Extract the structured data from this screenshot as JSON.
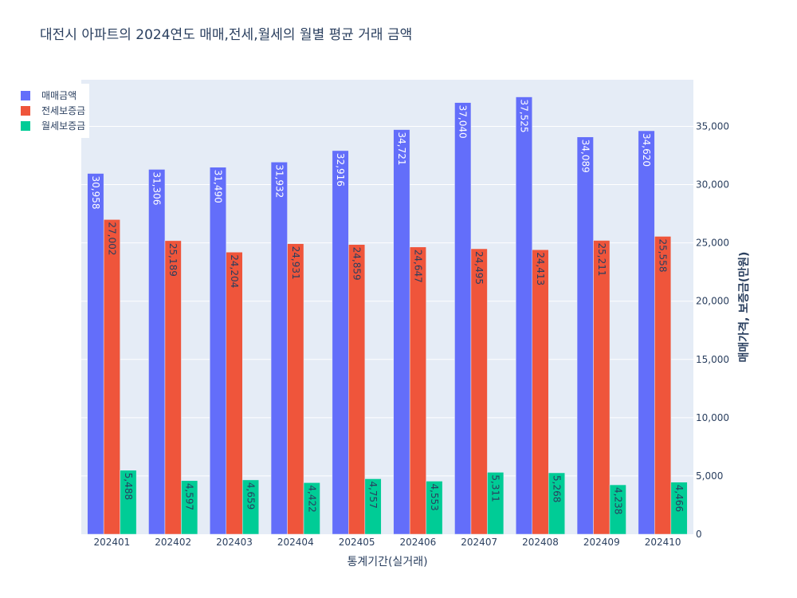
{
  "chart_data": {
    "type": "bar",
    "title": "대전시 아파트의 2024연도 매매,전세,월세의 월별 평균 거래 금액",
    "xlabel": "통계기간(실거래)",
    "ylabel": "매매가격, 보증금(만원)",
    "categories": [
      "202401",
      "202402",
      "202403",
      "202404",
      "202405",
      "202406",
      "202407",
      "202408",
      "202409",
      "202410"
    ],
    "ylim": [
      0,
      39000
    ],
    "yticks": [
      0,
      5000,
      10000,
      15000,
      20000,
      25000,
      30000,
      35000
    ],
    "ytick_labels": [
      "0",
      "5,000",
      "10,000",
      "15,000",
      "20,000",
      "25,000",
      "30,000",
      "35,000"
    ],
    "y_axis_side": "right",
    "grid": true,
    "legend_position": "top-left",
    "series": [
      {
        "name": "매매금액",
        "color": "#636efa",
        "label_color": "#ffffff",
        "values": [
          30958,
          31306,
          31490,
          31932,
          32916,
          34721,
          37040,
          37525,
          34089,
          34620
        ],
        "labels": [
          "30,958",
          "31,306",
          "31,490",
          "31,932",
          "32,916",
          "34,721",
          "37,040",
          "37,525",
          "34,089",
          "34,620"
        ]
      },
      {
        "name": "전세보증금",
        "color": "#ef553b",
        "label_color": "#2a3f5f",
        "values": [
          27002,
          25189,
          24204,
          24931,
          24859,
          24647,
          24495,
          24413,
          25211,
          25558
        ],
        "labels": [
          "27,002",
          "25,189",
          "24,204",
          "24,931",
          "24,859",
          "24,647",
          "24,495",
          "24,413",
          "25,211",
          "25,558"
        ]
      },
      {
        "name": "월세보증금",
        "color": "#00cc96",
        "label_color": "#2a3f5f",
        "values": [
          5488,
          4597,
          4659,
          4422,
          4757,
          4553,
          5311,
          5268,
          4238,
          4466
        ],
        "labels": [
          "5,488",
          "4,597",
          "4,659",
          "4,422",
          "4,757",
          "4,553",
          "5,311",
          "5,268",
          "4,238",
          "4,466"
        ]
      }
    ]
  }
}
